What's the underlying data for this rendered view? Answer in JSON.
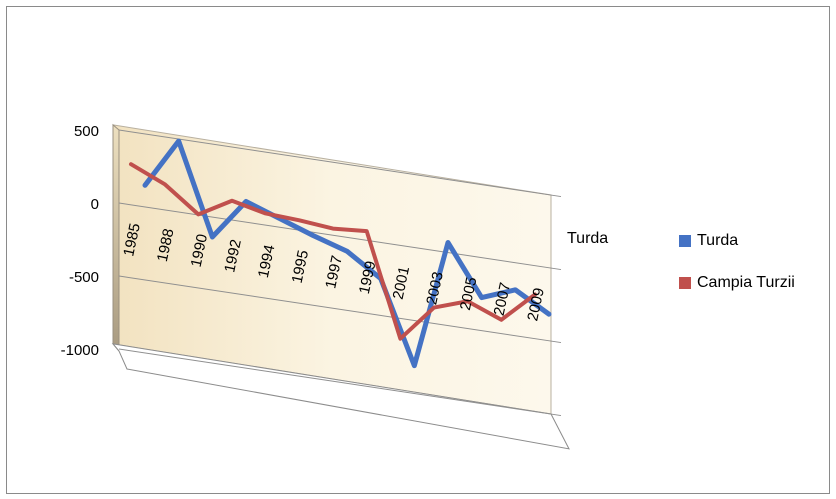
{
  "chart_data": {
    "type": "line",
    "style": "3d-line",
    "title": "",
    "xlabel": "",
    "ylabel": "",
    "ylim": [
      -1000,
      500
    ],
    "yticks": [
      "500",
      "0",
      "-500",
      "-1000"
    ],
    "categories": [
      "1985",
      "1988",
      "1990",
      "1992",
      "1994",
      "1995",
      "1997",
      "1999",
      "2001",
      "2003",
      "2005",
      "2007",
      "2009"
    ],
    "depth_label": "Turda",
    "legend_position": "right",
    "grid": true,
    "series": [
      {
        "name": "Turda",
        "color": "#4472c4",
        "values": [
          80,
          420,
          -200,
          80,
          0,
          -80,
          -150,
          -300,
          -860,
          20,
          -320,
          -230,
          -360
        ]
      },
      {
        "name": "Campia Turzii",
        "color": "#c0504d",
        "values": [
          230,
          130,
          -40,
          90,
          40,
          30,
          10,
          30,
          -670,
          -420,
          -340,
          -430,
          -220
        ]
      }
    ]
  }
}
